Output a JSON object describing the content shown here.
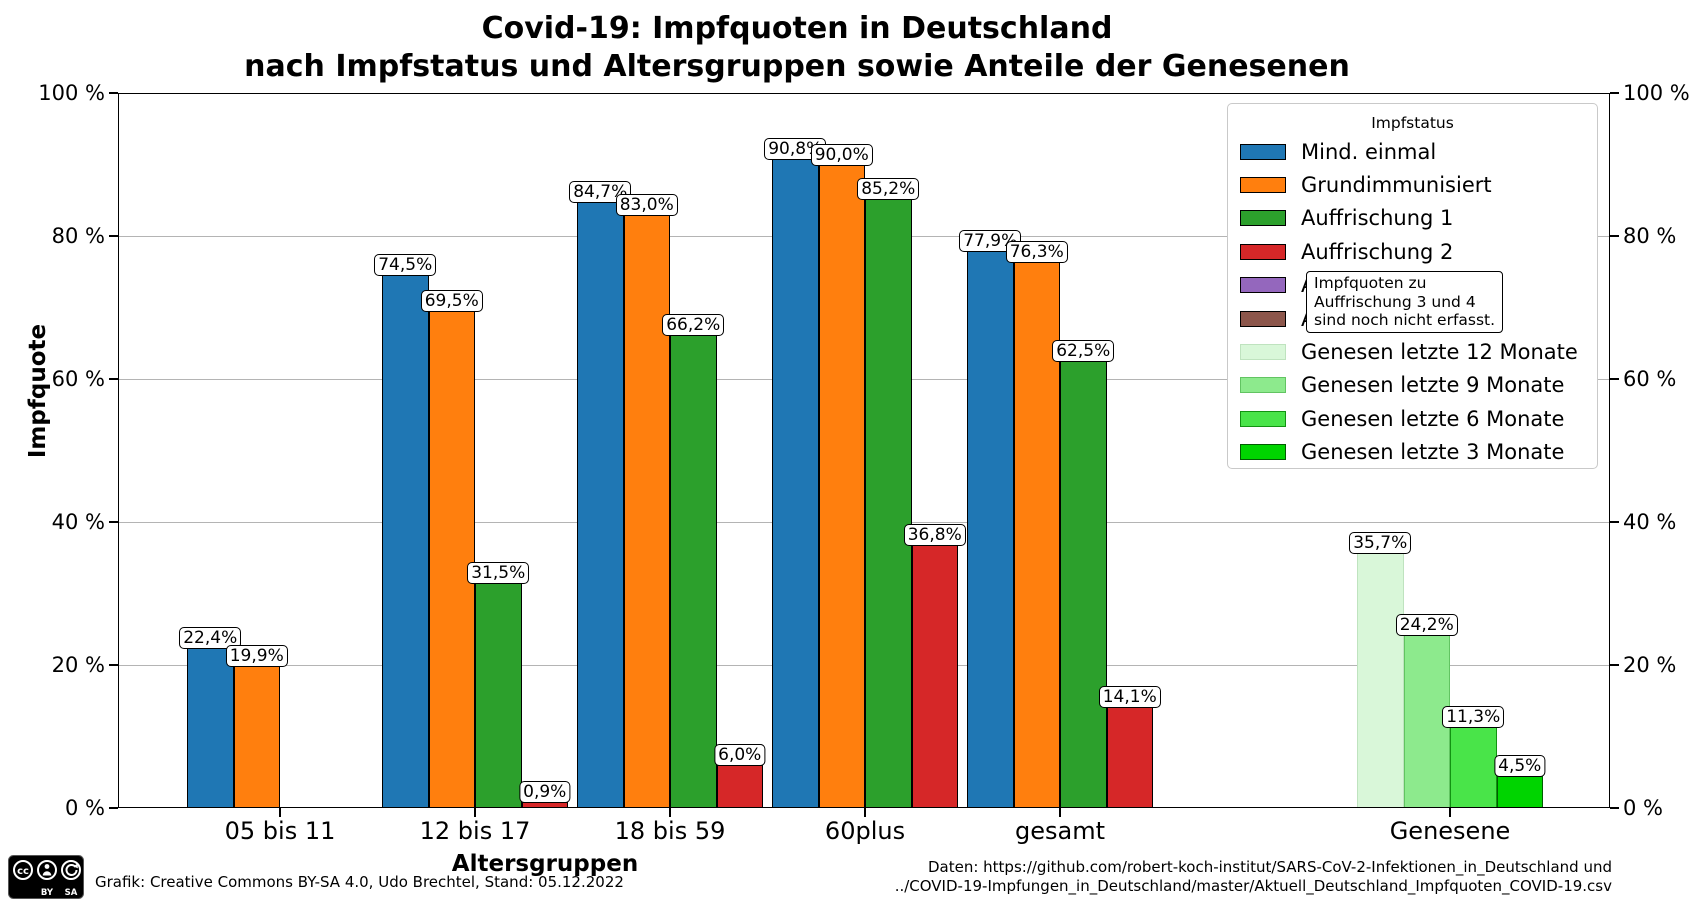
{
  "chart_data": {
    "type": "bar",
    "title": "Covid-19: Impfquoten in Deutschland",
    "subtitle": "nach Impfstatus und Altersgruppen sowie Anteile der Genesenen",
    "xlabel": "Altersgruppen",
    "ylabel": "Impfquote",
    "ylim": [
      0,
      100
    ],
    "ytick_values": [
      0,
      20,
      40,
      60,
      80,
      100
    ],
    "ytick_labels": [
      "0 %",
      "20 %",
      "40 %",
      "60 %",
      "80 %",
      "100 %"
    ],
    "grid": "horizontal",
    "legend": {
      "title": "Impfstatus",
      "position": "upper right"
    },
    "series": [
      {
        "name": "Mind. einmal",
        "color": "#1f77b4",
        "edge": "#000000"
      },
      {
        "name": "Grundimmunisiert",
        "color": "#ff7f0e",
        "edge": "#000000"
      },
      {
        "name": "Auffrischung 1",
        "color": "#2ca02c",
        "edge": "#000000"
      },
      {
        "name": "Auffrischung 2",
        "color": "#d62728",
        "edge": "#000000"
      },
      {
        "name": "Auffrischung 3",
        "color": "#9467bd",
        "edge": "#000000"
      },
      {
        "name": "Auffrischung 4",
        "color": "#8c564b",
        "edge": "#000000"
      },
      {
        "name": "Genesen letzte 12 Monate",
        "color": "#d9f7d9",
        "edge": "#bfe3bf"
      },
      {
        "name": "Genesen letzte 9 Monate",
        "color": "#8dea8d",
        "edge": "#62c462"
      },
      {
        "name": "Genesen letzte 6 Monate",
        "color": "#49e449",
        "edge": "#129212"
      },
      {
        "name": "Genesen letzte 3 Monate",
        "color": "#00d400",
        "edge": "#015c01"
      }
    ],
    "categories": [
      "05 bis 11",
      "12 bis 17",
      "18 bis 59",
      "60plus",
      "gesamt",
      "Genesene"
    ],
    "groups": [
      {
        "category": "05 bis 11",
        "bars": [
          {
            "series": 0,
            "value": 22.4,
            "label": "22,4%"
          },
          {
            "series": 1,
            "value": 19.9,
            "label": "19,9%"
          }
        ]
      },
      {
        "category": "12 bis 17",
        "bars": [
          {
            "series": 0,
            "value": 74.5,
            "label": "74,5%"
          },
          {
            "series": 1,
            "value": 69.5,
            "label": "69,5%"
          },
          {
            "series": 2,
            "value": 31.5,
            "label": "31,5%"
          },
          {
            "series": 3,
            "value": 0.9,
            "label": "0,9%"
          }
        ]
      },
      {
        "category": "18 bis 59",
        "bars": [
          {
            "series": 0,
            "value": 84.7,
            "label": "84,7%"
          },
          {
            "series": 1,
            "value": 83.0,
            "label": "83,0%"
          },
          {
            "series": 2,
            "value": 66.2,
            "label": "66,2%"
          },
          {
            "series": 3,
            "value": 6.0,
            "label": "6,0%"
          }
        ]
      },
      {
        "category": "60plus",
        "bars": [
          {
            "series": 0,
            "value": 90.8,
            "label": "90,8%"
          },
          {
            "series": 1,
            "value": 90.0,
            "label": "90,0%"
          },
          {
            "series": 2,
            "value": 85.2,
            "label": "85,2%"
          },
          {
            "series": 3,
            "value": 36.8,
            "label": "36,8%"
          }
        ]
      },
      {
        "category": "gesamt",
        "bars": [
          {
            "series": 0,
            "value": 77.9,
            "label": "77,9%"
          },
          {
            "series": 1,
            "value": 76.3,
            "label": "76,3%"
          },
          {
            "series": 2,
            "value": 62.5,
            "label": "62,5%"
          },
          {
            "series": 3,
            "value": 14.1,
            "label": "14,1%"
          }
        ]
      },
      {
        "category": "Genesene",
        "bars": [
          {
            "series": 6,
            "value": 35.7,
            "label": "35,7%"
          },
          {
            "series": 7,
            "value": 24.2,
            "label": "24,2%"
          },
          {
            "series": 8,
            "value": 11.3,
            "label": "11,3%"
          },
          {
            "series": 9,
            "value": 4.5,
            "label": "4,5%"
          }
        ]
      }
    ],
    "annotation": {
      "lines": [
        "Impfquoten zu",
        "Auffrischung 3 und 4",
        "sind noch nicht erfasst."
      ]
    }
  },
  "footer": {
    "attribution": "Grafik: Creative Commons BY-SA 4.0, Udo Brechtel, Stand: 05.12.2022",
    "source_line1": "Daten: https://github.com/robert-koch-institut/SARS-CoV-2-Infektionen_in_Deutschland und",
    "source_line2": "../COVID-19-Impfungen_in_Deutschland/master/Aktuell_Deutschland_Impfquoten_COVID-19.csv",
    "badge": {
      "cc": "cc",
      "by": "BY",
      "sa": "SA"
    }
  }
}
